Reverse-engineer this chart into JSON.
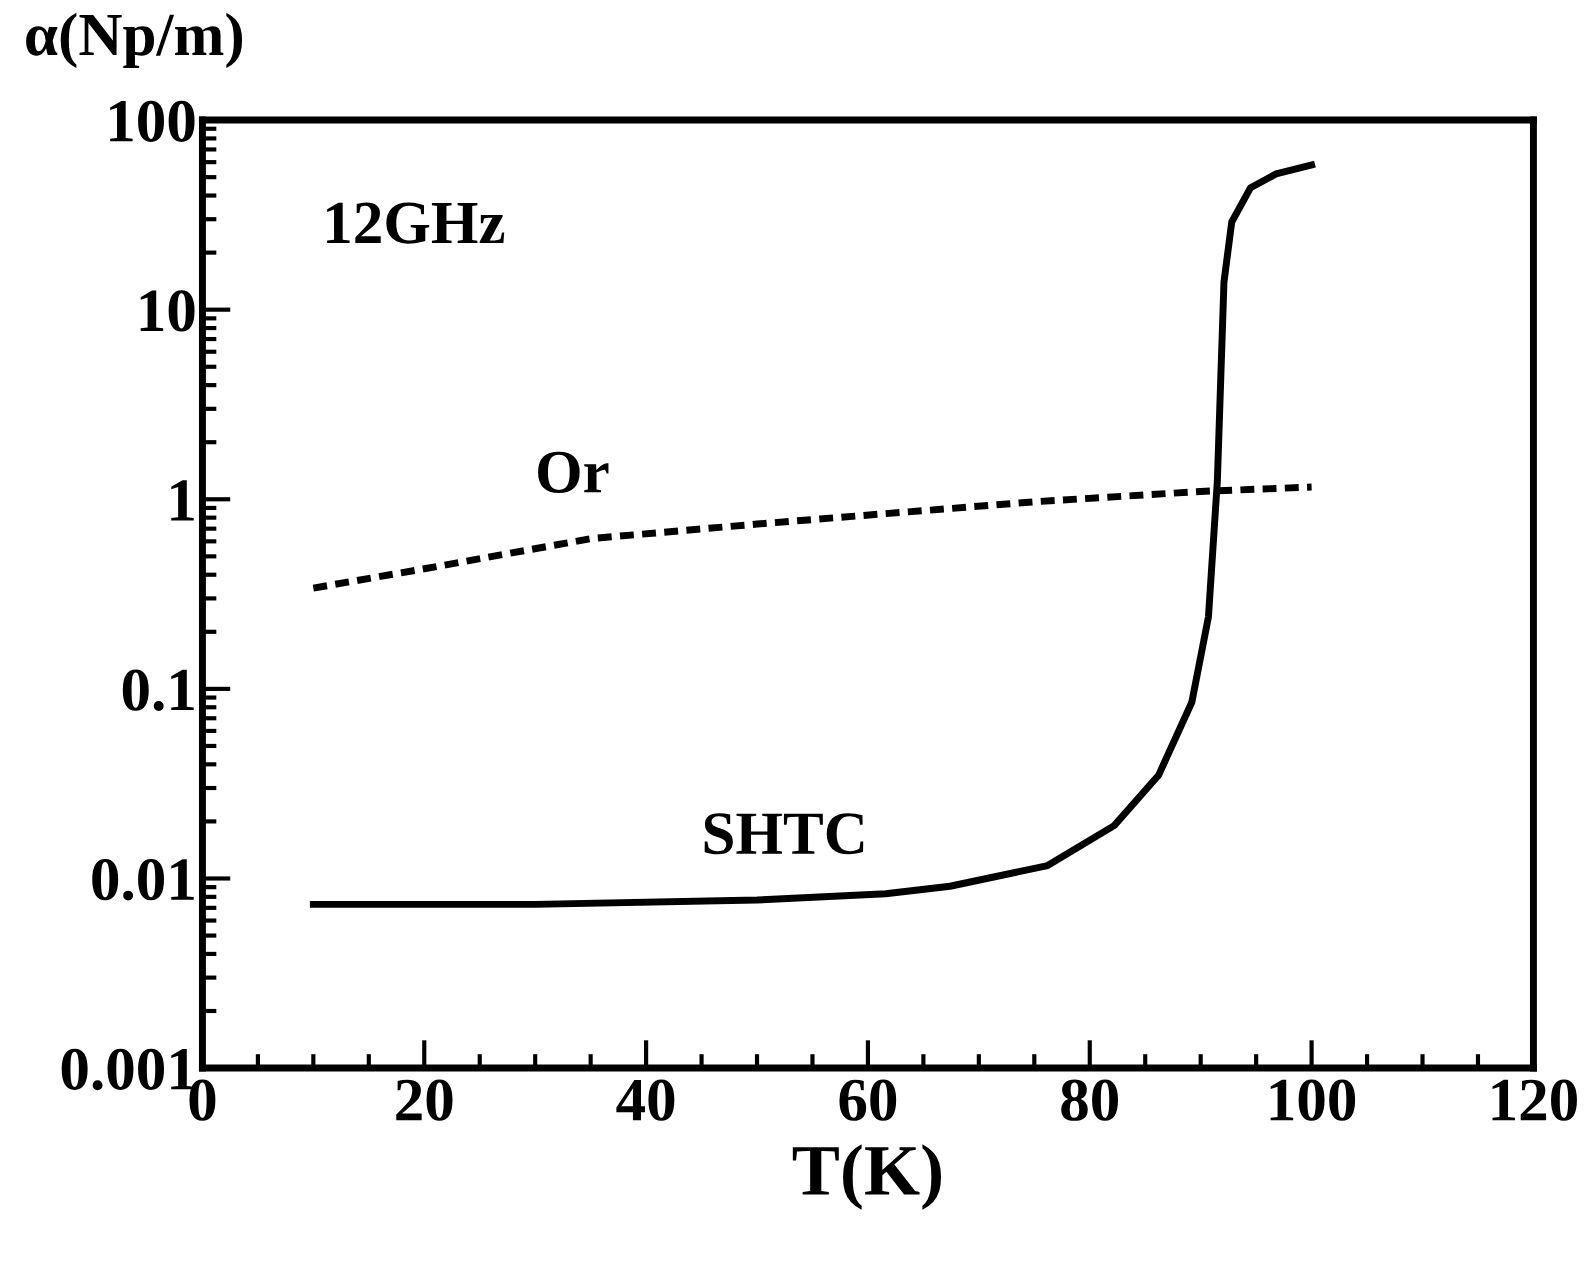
{
  "chart_data": {
    "type": "line",
    "xlabel": "T(K)",
    "ylabel": "α(Np/m)",
    "log": "y",
    "xlim": [
      0,
      120
    ],
    "xticks": [
      0,
      20,
      40,
      60,
      80,
      100,
      120
    ],
    "ylim": [
      0.001,
      100
    ],
    "yticks": [
      0.001,
      0.01,
      0.1,
      1,
      10,
      100
    ],
    "annotations": [
      "12GHz"
    ],
    "series": [
      {
        "name": "Or",
        "color": "#000000",
        "line_style": "dashed",
        "x": [
          10,
          20,
          35,
          50,
          61.6,
          75,
          90,
          100
        ],
        "values": [
          0.34,
          0.43,
          0.62,
          0.74,
          0.84,
          0.97,
          1.1,
          1.16
        ]
      },
      {
        "name": "SHTC",
        "color": "#000000",
        "line_style": "solid",
        "x": [
          10,
          30,
          50,
          61.6,
          67.4,
          76.2,
          82.2,
          86.2,
          89.2,
          90.7,
          91.5,
          92.1,
          92.8,
          94.5,
          96.8,
          100
        ],
        "values": [
          0.0073,
          0.0073,
          0.0077,
          0.0083,
          0.0091,
          0.0117,
          0.019,
          0.035,
          0.085,
          0.24,
          1.24,
          14,
          29,
          44,
          52,
          58
        ]
      }
    ]
  }
}
